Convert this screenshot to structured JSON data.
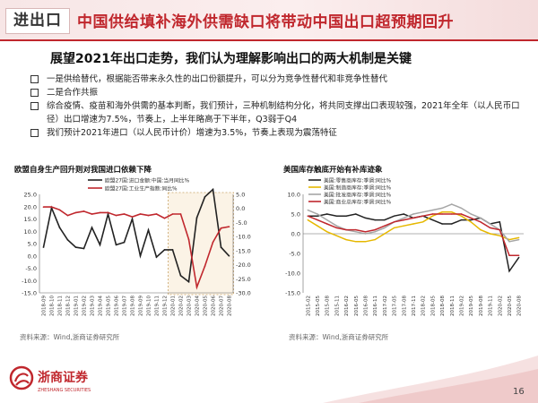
{
  "header": {
    "tag": "进出口",
    "title": "中国供给填补海外供需缺口将带动中国出口超预期回升"
  },
  "headline": "展望2021年出口走势，我们认为理解影响出口的两大机制是关键",
  "bullets": [
    "一是供给替代，根据能否带来永久性的出口份额提升，可以分为竞争性替代和非竞争性替代",
    "二是合作共振",
    "综合疫情、疫苗和海外供需的基本判断，我们预计，三种机制结构分化，将共同支撑出口表现较强，2021年全年（以人民币口径）出口增速为7.5%，节奏上，上半年略高于下半年，Q3弱于Q4",
    "我们预计2021年进口（以人民币计价）增速为3.5%，节奏上表现为震荡特征"
  ],
  "left_chart": {
    "title": "欧盟自身生产回升则对我国进口依赖下降",
    "source": "资料来源：Wind,浙商证券研究所"
  },
  "right_chart": {
    "title": "美国库存触底开始有补库迹象",
    "source": "资料来源：Wind,浙商证券研究所"
  },
  "footer": {
    "logo_text": "浙商证券",
    "logo_sub": "ZHESHANG SECURITIES",
    "page": "16"
  },
  "colors": {
    "brand_red": "#c0272d",
    "series_black": "#222222",
    "series_red": "#c0272d",
    "series_gray": "#a6a6a6",
    "series_yellow": "#e6b800"
  },
  "chart_data": [
    {
      "type": "line",
      "title": "欧盟自身生产回升则对我国进口依赖下降",
      "x": [
        "2018-09",
        "2018-10",
        "2018-11",
        "2018-12",
        "2019-01",
        "2019-02",
        "2019-03",
        "2019-04",
        "2019-05",
        "2019-06",
        "2019-07",
        "2019-08",
        "2019-09",
        "2019-10",
        "2019-11",
        "2019-12",
        "2020-01",
        "2020-02",
        "2020-03",
        "2020-04",
        "2020-05",
        "2020-06",
        "2020-07",
        "2020-08"
      ],
      "series": [
        {
          "name": "欧盟27国:进口金额:中国:当月同比%",
          "axis": "left",
          "values": [
            3.5,
            19.5,
            11.5,
            6.5,
            3.5,
            3,
            11.5,
            4.5,
            17,
            4.5,
            5.5,
            15,
            0,
            10.5,
            -0.5,
            2.5,
            2.5,
            -8,
            -10.5,
            15.5,
            24,
            27,
            3.5,
            0
          ]
        },
        {
          "name": "欧盟27国:工业生产指数:同比%",
          "axis": "right",
          "values": [
            0.5,
            0.5,
            -0.5,
            -2.5,
            -1.5,
            -1,
            -2,
            -1.5,
            -1.5,
            -2.5,
            -2,
            -3,
            -2,
            -2.5,
            -2,
            -3.5,
            -2,
            -2,
            -11,
            -28,
            -20.5,
            -12,
            -7,
            -6.5
          ]
        }
      ],
      "ylim_left": [
        -15,
        25
      ],
      "yticks_left": [
        -15,
        -10,
        -5,
        0,
        5,
        10,
        15,
        20,
        25
      ],
      "ylim_right": [
        -30,
        5
      ],
      "yticks_right": [
        -30,
        -25,
        -20,
        -15,
        -10,
        -5,
        0,
        5
      ],
      "grid": false,
      "highlight_range": [
        "2020-01",
        "2020-08"
      ],
      "legend": "top-center"
    },
    {
      "type": "line",
      "title": "美国库存触底开始有补库迹象",
      "x": [
        "2015-02",
        "2015-05",
        "2015-08",
        "2015-11",
        "2016-02",
        "2016-05",
        "2016-08",
        "2016-11",
        "2017-02",
        "2017-05",
        "2017-08",
        "2017-11",
        "2018-02",
        "2018-05",
        "2018-08",
        "2018-11",
        "2019-02",
        "2019-05",
        "2019-08",
        "2019-11",
        "2020-02",
        "2020-05",
        "2020-08"
      ],
      "series": [
        {
          "name": "美国:零售商库存:季调:同比%",
          "values": [
            4.5,
            4.5,
            5,
            4.5,
            4.5,
            5,
            4,
            3.5,
            3.5,
            4.5,
            5,
            4,
            4.5,
            3.5,
            2.5,
            2.5,
            3.5,
            3.5,
            4,
            2.5,
            3,
            -9.5,
            -6
          ]
        },
        {
          "name": "美国:制造商库存:季调:同比%",
          "values": [
            3.5,
            2,
            0.5,
            -0.5,
            -1.5,
            -2,
            -2,
            -1.5,
            0,
            1.5,
            2,
            2.5,
            3,
            4.5,
            5.5,
            5.5,
            4.5,
            3,
            1,
            0,
            -0.5,
            -1.5,
            -1
          ]
        },
        {
          "name": "美国:批发商库存:季调:同比%",
          "values": [
            6,
            5,
            3.5,
            2,
            1,
            0.5,
            0,
            0.5,
            1.5,
            3,
            4,
            5,
            5.5,
            6,
            6.5,
            7.5,
            6.5,
            5,
            4,
            2.5,
            1,
            -2,
            -1.5
          ]
        },
        {
          "name": "美国:商业总库存:季调:同比%",
          "values": [
            4.5,
            3.5,
            2.5,
            1.5,
            1,
            1,
            0.5,
            1,
            2,
            3,
            3.5,
            4,
            4.5,
            5,
            5,
            5,
            5,
            4,
            3,
            1.5,
            1,
            -5.5,
            -5.5
          ]
        }
      ],
      "ylim": [
        -15,
        10
      ],
      "yticks": [
        -15,
        -10,
        -5,
        0,
        5,
        10
      ],
      "grid": false,
      "legend": "top-left"
    }
  ]
}
